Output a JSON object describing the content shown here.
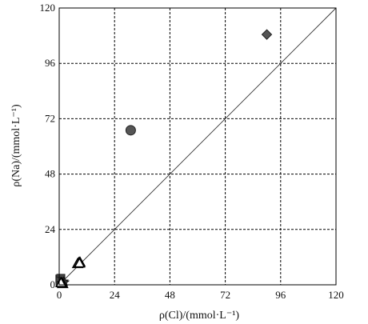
{
  "chart_data": {
    "type": "scatter",
    "xlabel": "ρ(Cl)/(mmol·L⁻¹)",
    "ylabel": "ρ(Na)/(mmol·L⁻¹)",
    "xlim": [
      0,
      120
    ],
    "ylim": [
      0,
      120
    ],
    "xticks": [
      "0",
      "24",
      "48",
      "72",
      "96",
      "120"
    ],
    "yticks": [
      "0",
      "24",
      "48",
      "72",
      "96",
      "120"
    ],
    "grid": true,
    "grid_style": "dashed",
    "reference_line": {
      "type": "1:1",
      "from": [
        0,
        0
      ],
      "to": [
        120,
        120
      ]
    },
    "series": [
      {
        "marker": "diamond",
        "fill": "#555555",
        "points": [
          [
            90.0,
            108.5
          ]
        ]
      },
      {
        "marker": "circle",
        "fill": "#555555",
        "points": [
          [
            31.0,
            67.0
          ]
        ]
      },
      {
        "marker": "triangle-open",
        "fill": "#ffffff",
        "points": [
          [
            8.5,
            9.6
          ],
          [
            8.0,
            9.2
          ],
          [
            9.0,
            9.8
          ],
          [
            8.8,
            9.4
          ]
        ]
      },
      {
        "marker": "square",
        "fill": "#444444",
        "points": [
          [
            0.3,
            2.5
          ],
          [
            0.5,
            2.0
          ],
          [
            0.7,
            2.8
          ],
          [
            0.4,
            1.5
          ]
        ]
      },
      {
        "marker": "star",
        "fill": "#333333",
        "points": [
          [
            1.2,
            1.0
          ],
          [
            2.0,
            1.5
          ],
          [
            1.0,
            0.6
          ],
          [
            2.4,
            1.1
          ]
        ]
      },
      {
        "marker": "triangle-open",
        "fill": "#ffffff",
        "points": [
          [
            1.5,
            0.5
          ],
          [
            0.8,
            0.9
          ]
        ]
      }
    ]
  }
}
